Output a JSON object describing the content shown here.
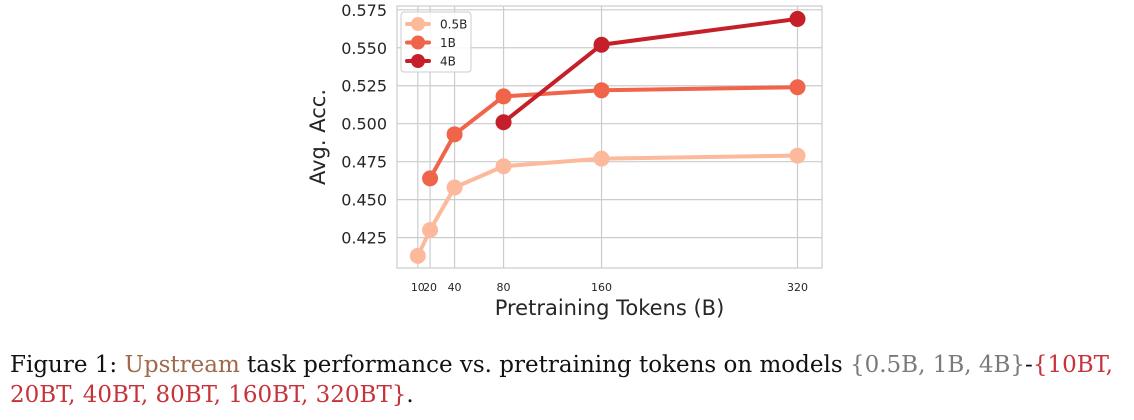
{
  "chart_data": {
    "type": "line",
    "xlabel": "Pretraining Tokens (B)",
    "ylabel": "Avg. Acc.",
    "xlim": [
      -7,
      340
    ],
    "ylim": [
      0.405,
      0.5775
    ],
    "xticks": [
      10,
      20,
      40,
      80,
      160,
      320
    ],
    "xtick_labels": [
      "10",
      "20",
      "40",
      "80",
      "160",
      "320"
    ],
    "yticks": [
      0.425,
      0.45,
      0.475,
      0.5,
      0.525,
      0.55,
      0.575
    ],
    "ytick_labels": [
      "0.425",
      "0.450",
      "0.475",
      "0.500",
      "0.525",
      "0.550",
      "0.575"
    ],
    "grid": true,
    "legend_position": "top-left",
    "series": [
      {
        "name": "0.5B",
        "color": "#fcb99c",
        "x": [
          10,
          20,
          40,
          80,
          160,
          320
        ],
        "y": [
          0.413,
          0.43,
          0.458,
          0.472,
          0.477,
          0.479
        ]
      },
      {
        "name": "1B",
        "color": "#f0654a",
        "x": [
          20,
          40,
          80,
          160,
          320
        ],
        "y": [
          0.464,
          0.493,
          0.518,
          0.522,
          0.524
        ]
      },
      {
        "name": "4B",
        "color": "#c5202a",
        "x": [
          80,
          160,
          320
        ],
        "y": [
          0.501,
          0.552,
          0.569
        ]
      }
    ]
  },
  "caption": {
    "prefix": "Figure 1: ",
    "upstream": "Upstream",
    "middle": " task performance vs. pretraining tokens on models ",
    "models": "{0.5B, 1B, 4B}",
    "dash": "-",
    "tokens": "{10BT, 20BT, 40BT, 80BT, 160BT, 320BT}",
    "end": "."
  }
}
